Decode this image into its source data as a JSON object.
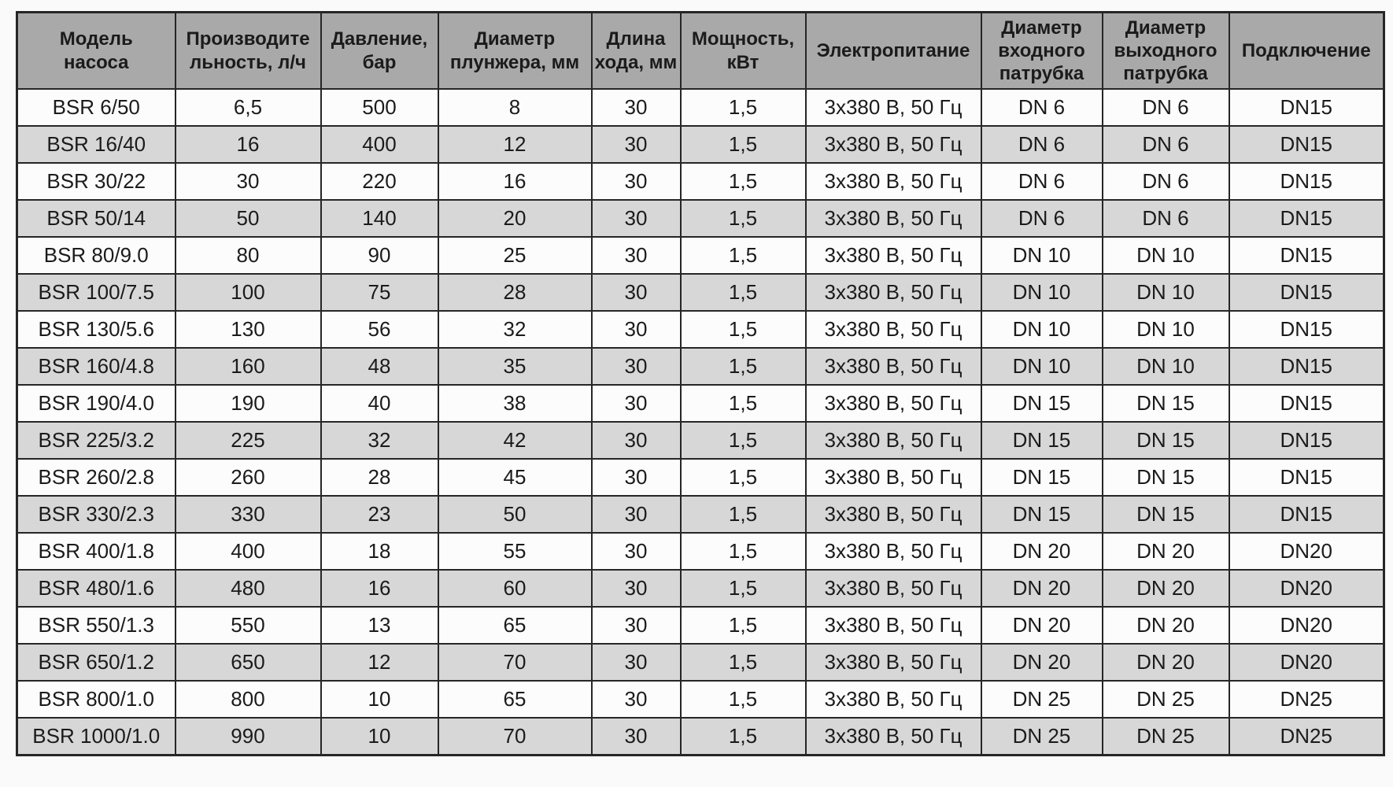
{
  "page": {
    "background": "#fafafa"
  },
  "table": {
    "title": "Pump specifications table (BSR series)",
    "colors": {
      "header_bg": "#a9a9a9",
      "row_odd_bg": "#fcfcfc",
      "row_even_bg": "#d7d7d7",
      "border": "#262626",
      "text": "#1b1b1b"
    },
    "headers": [
      "Модель\nнасоса",
      "Производите\nльность, л/ч",
      "Давление,\nбар",
      "Диаметр\nплунжера, мм",
      "Длина\nхода, мм",
      "Мощность,\nкВт",
      "Электропитание",
      "Диаметр\nвходного\nпатрубка",
      "Диаметр\nвыходного\nпатрубка",
      "Подключение"
    ],
    "column_keys": [
      "model",
      "capacity-lh",
      "pressure-bar",
      "plunger-diameter-mm",
      "stroke-length-mm",
      "power-kw",
      "power-supply",
      "inlet-port-diameter",
      "outlet-port-diameter",
      "connection"
    ],
    "rows": [
      [
        "BSR 6/50",
        "6,5",
        "500",
        "8",
        "30",
        "1,5",
        "3x380 В, 50 Гц",
        "DN 6",
        "DN 6",
        "DN15"
      ],
      [
        "BSR 16/40",
        "16",
        "400",
        "12",
        "30",
        "1,5",
        "3x380 В, 50 Гц",
        "DN 6",
        "DN 6",
        "DN15"
      ],
      [
        "BSR 30/22",
        "30",
        "220",
        "16",
        "30",
        "1,5",
        "3x380 В, 50 Гц",
        "DN 6",
        "DN 6",
        "DN15"
      ],
      [
        "BSR 50/14",
        "50",
        "140",
        "20",
        "30",
        "1,5",
        "3x380 В, 50 Гц",
        "DN 6",
        "DN 6",
        "DN15"
      ],
      [
        "BSR 80/9.0",
        "80",
        "90",
        "25",
        "30",
        "1,5",
        "3x380 В, 50 Гц",
        "DN 10",
        "DN 10",
        "DN15"
      ],
      [
        "BSR 100/7.5",
        "100",
        "75",
        "28",
        "30",
        "1,5",
        "3x380 В, 50 Гц",
        "DN 10",
        "DN 10",
        "DN15"
      ],
      [
        "BSR 130/5.6",
        "130",
        "56",
        "32",
        "30",
        "1,5",
        "3x380 В, 50 Гц",
        "DN 10",
        "DN 10",
        "DN15"
      ],
      [
        "BSR 160/4.8",
        "160",
        "48",
        "35",
        "30",
        "1,5",
        "3x380 В, 50 Гц",
        "DN 10",
        "DN 10",
        "DN15"
      ],
      [
        "BSR 190/4.0",
        "190",
        "40",
        "38",
        "30",
        "1,5",
        "3x380 В, 50 Гц",
        "DN 15",
        "DN 15",
        "DN15"
      ],
      [
        "BSR 225/3.2",
        "225",
        "32",
        "42",
        "30",
        "1,5",
        "3x380 В, 50 Гц",
        "DN 15",
        "DN 15",
        "DN15"
      ],
      [
        "BSR 260/2.8",
        "260",
        "28",
        "45",
        "30",
        "1,5",
        "3x380 В, 50 Гц",
        "DN 15",
        "DN 15",
        "DN15"
      ],
      [
        "BSR 330/2.3",
        "330",
        "23",
        "50",
        "30",
        "1,5",
        "3x380 В, 50 Гц",
        "DN 15",
        "DN 15",
        "DN15"
      ],
      [
        "BSR 400/1.8",
        "400",
        "18",
        "55",
        "30",
        "1,5",
        "3x380 В, 50 Гц",
        "DN 20",
        "DN 20",
        "DN20"
      ],
      [
        "BSR 480/1.6",
        "480",
        "16",
        "60",
        "30",
        "1,5",
        "3x380 В, 50 Гц",
        "DN 20",
        "DN 20",
        "DN20"
      ],
      [
        "BSR 550/1.3",
        "550",
        "13",
        "65",
        "30",
        "1,5",
        "3x380 В, 50 Гц",
        "DN 20",
        "DN 20",
        "DN20"
      ],
      [
        "BSR 650/1.2",
        "650",
        "12",
        "70",
        "30",
        "1,5",
        "3x380 В, 50 Гц",
        "DN 20",
        "DN 20",
        "DN20"
      ],
      [
        "BSR 800/1.0",
        "800",
        "10",
        "65",
        "30",
        "1,5",
        "3x380 В, 50 Гц",
        "DN 25",
        "DN 25",
        "DN25"
      ],
      [
        "BSR 1000/1.0",
        "990",
        "10",
        "70",
        "30",
        "1,5",
        "3x380 В, 50 Гц",
        "DN 25",
        "DN 25",
        "DN25"
      ]
    ]
  }
}
